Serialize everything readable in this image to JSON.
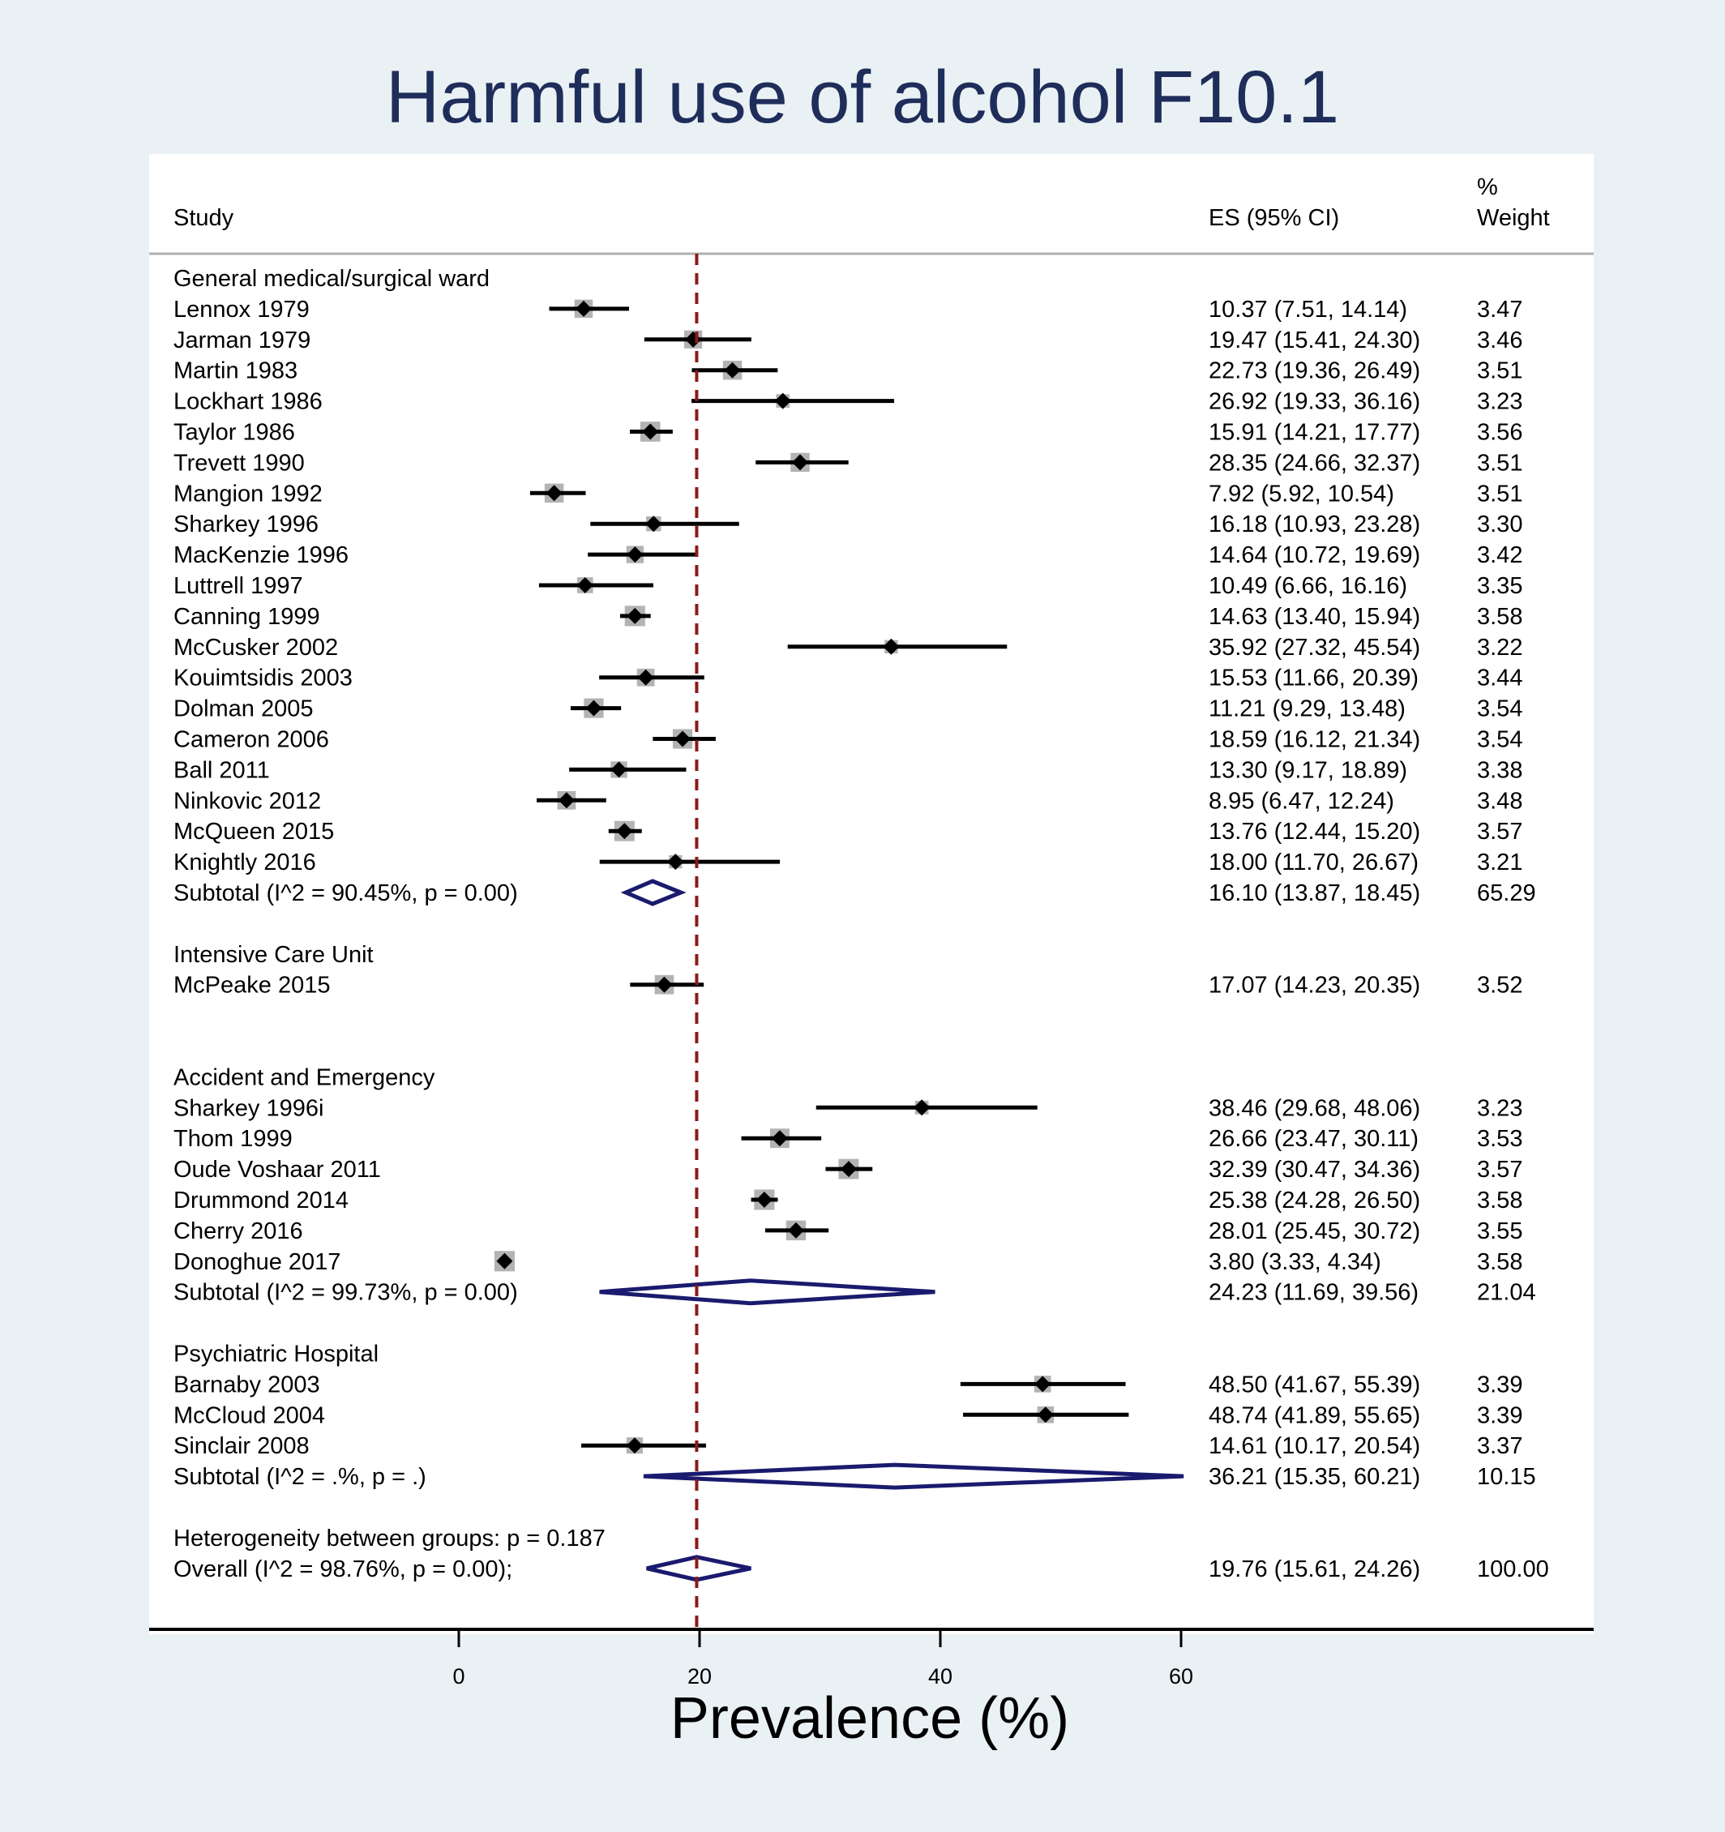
{
  "chart_data": {
    "type": "forest",
    "title": "Harmful use of alcohol F10.1",
    "xlabel": "Prevalence (%)",
    "xlim": [
      0,
      60
    ],
    "xticks": [
      "0",
      "20",
      "40",
      "60"
    ],
    "reference_line": 19.76,
    "headers": {
      "study": "Study",
      "es": "ES (95% CI)",
      "weight_top": "%",
      "weight": "Weight"
    },
    "groups": [
      {
        "name": "General medical/surgical ward",
        "studies": [
          {
            "label": "Lennox 1979",
            "es": 10.37,
            "lo": 7.51,
            "hi": 14.14,
            "es_text": "10.37 (7.51, 14.14)",
            "weight": "3.47"
          },
          {
            "label": "Jarman 1979",
            "es": 19.47,
            "lo": 15.41,
            "hi": 24.3,
            "es_text": "19.47 (15.41, 24.30)",
            "weight": "3.46"
          },
          {
            "label": "Martin 1983",
            "es": 22.73,
            "lo": 19.36,
            "hi": 26.49,
            "es_text": "22.73 (19.36, 26.49)",
            "weight": "3.51"
          },
          {
            "label": "Lockhart 1986",
            "es": 26.92,
            "lo": 19.33,
            "hi": 36.16,
            "es_text": "26.92 (19.33, 36.16)",
            "weight": "3.23"
          },
          {
            "label": "Taylor 1986",
            "es": 15.91,
            "lo": 14.21,
            "hi": 17.77,
            "es_text": "15.91 (14.21, 17.77)",
            "weight": "3.56"
          },
          {
            "label": "Trevett 1990",
            "es": 28.35,
            "lo": 24.66,
            "hi": 32.37,
            "es_text": "28.35 (24.66, 32.37)",
            "weight": "3.51"
          },
          {
            "label": "Mangion 1992",
            "es": 7.92,
            "lo": 5.92,
            "hi": 10.54,
            "es_text": "7.92 (5.92, 10.54)",
            "weight": "3.51"
          },
          {
            "label": "Sharkey 1996",
            "es": 16.18,
            "lo": 10.93,
            "hi": 23.28,
            "es_text": "16.18 (10.93, 23.28)",
            "weight": "3.30"
          },
          {
            "label": "MacKenzie 1996",
            "es": 14.64,
            "lo": 10.72,
            "hi": 19.69,
            "es_text": "14.64 (10.72, 19.69)",
            "weight": "3.42"
          },
          {
            "label": "Luttrell 1997",
            "es": 10.49,
            "lo": 6.66,
            "hi": 16.16,
            "es_text": "10.49 (6.66, 16.16)",
            "weight": "3.35"
          },
          {
            "label": "Canning 1999",
            "es": 14.63,
            "lo": 13.4,
            "hi": 15.94,
            "es_text": "14.63 (13.40, 15.94)",
            "weight": "3.58"
          },
          {
            "label": "McCusker 2002",
            "es": 35.92,
            "lo": 27.32,
            "hi": 45.54,
            "es_text": "35.92 (27.32, 45.54)",
            "weight": "3.22"
          },
          {
            "label": "Kouimtsidis 2003",
            "es": 15.53,
            "lo": 11.66,
            "hi": 20.39,
            "es_text": "15.53 (11.66, 20.39)",
            "weight": "3.44"
          },
          {
            "label": "Dolman 2005",
            "es": 11.21,
            "lo": 9.29,
            "hi": 13.48,
            "es_text": "11.21 (9.29, 13.48)",
            "weight": "3.54"
          },
          {
            "label": "Cameron 2006",
            "es": 18.59,
            "lo": 16.12,
            "hi": 21.34,
            "es_text": "18.59 (16.12, 21.34)",
            "weight": "3.54"
          },
          {
            "label": "Ball 2011",
            "es": 13.3,
            "lo": 9.17,
            "hi": 18.89,
            "es_text": "13.30 (9.17, 18.89)",
            "weight": "3.38"
          },
          {
            "label": "Ninkovic 2012",
            "es": 8.95,
            "lo": 6.47,
            "hi": 12.24,
            "es_text": "8.95 (6.47, 12.24)",
            "weight": "3.48"
          },
          {
            "label": "McQueen 2015",
            "es": 13.76,
            "lo": 12.44,
            "hi": 15.2,
            "es_text": "13.76 (12.44, 15.20)",
            "weight": "3.57"
          },
          {
            "label": "Knightly 2016",
            "es": 18.0,
            "lo": 11.7,
            "hi": 26.67,
            "es_text": "18.00 (11.70, 26.67)",
            "weight": "3.21"
          }
        ],
        "subtotal": {
          "label": "Subtotal  (I^2 = 90.45%, p = 0.00)",
          "es": 16.1,
          "lo": 13.87,
          "hi": 18.45,
          "es_text": "16.10 (13.87, 18.45)",
          "weight": "65.29"
        }
      },
      {
        "name": "Intensive Care Unit",
        "studies": [
          {
            "label": "McPeake 2015",
            "es": 17.07,
            "lo": 14.23,
            "hi": 20.35,
            "es_text": "17.07 (14.23, 20.35)",
            "weight": "3.52"
          }
        ]
      },
      {
        "name": "Accident and Emergency",
        "studies": [
          {
            "label": "Sharkey 1996i",
            "es": 38.46,
            "lo": 29.68,
            "hi": 48.06,
            "es_text": "38.46 (29.68, 48.06)",
            "weight": "3.23"
          },
          {
            "label": "Thom 1999",
            "es": 26.66,
            "lo": 23.47,
            "hi": 30.11,
            "es_text": "26.66 (23.47, 30.11)",
            "weight": "3.53"
          },
          {
            "label": "Oude Voshaar 2011",
            "es": 32.39,
            "lo": 30.47,
            "hi": 34.36,
            "es_text": "32.39 (30.47, 34.36)",
            "weight": "3.57"
          },
          {
            "label": "Drummond 2014",
            "es": 25.38,
            "lo": 24.28,
            "hi": 26.5,
            "es_text": "25.38 (24.28, 26.50)",
            "weight": "3.58"
          },
          {
            "label": "Cherry 2016",
            "es": 28.01,
            "lo": 25.45,
            "hi": 30.72,
            "es_text": "28.01 (25.45, 30.72)",
            "weight": "3.55"
          },
          {
            "label": "Donoghue 2017",
            "es": 3.8,
            "lo": 3.33,
            "hi": 4.34,
            "es_text": "3.80 (3.33, 4.34)",
            "weight": "3.58"
          }
        ],
        "subtotal": {
          "label": "Subtotal  (I^2 = 99.73%, p = 0.00)",
          "es": 24.23,
          "lo": 11.69,
          "hi": 39.56,
          "es_text": "24.23 (11.69, 39.56)",
          "weight": "21.04"
        }
      },
      {
        "name": "Psychiatric Hospital",
        "studies": [
          {
            "label": "Barnaby 2003",
            "es": 48.5,
            "lo": 41.67,
            "hi": 55.39,
            "es_text": "48.50 (41.67, 55.39)",
            "weight": "3.39"
          },
          {
            "label": "McCloud 2004",
            "es": 48.74,
            "lo": 41.89,
            "hi": 55.65,
            "es_text": "48.74 (41.89, 55.65)",
            "weight": "3.39"
          },
          {
            "label": "Sinclair 2008",
            "es": 14.61,
            "lo": 10.17,
            "hi": 20.54,
            "es_text": "14.61 (10.17, 20.54)",
            "weight": "3.37"
          }
        ],
        "subtotal": {
          "label": "Subtotal  (I^2 = .%, p = .)",
          "es": 36.21,
          "lo": 15.35,
          "hi": 60.21,
          "es_text": "36.21 (15.35, 60.21)",
          "weight": "10.15"
        }
      }
    ],
    "heterogeneity": "Heterogeneity between groups: p = 0.187",
    "overall": {
      "label": "Overall  (I^2 = 98.76%, p = 0.00);",
      "es": 19.76,
      "lo": 15.61,
      "hi": 24.26,
      "es_text": "19.76 (15.61, 24.26)",
      "weight": "100.00"
    }
  },
  "colors": {
    "background": "#eaf1f4",
    "panel": "#ffffff",
    "title": "#1f2d5a",
    "diamond": "#1a1a6e",
    "reference_line": "#8b1a1a",
    "box": "#b3b3b3"
  }
}
